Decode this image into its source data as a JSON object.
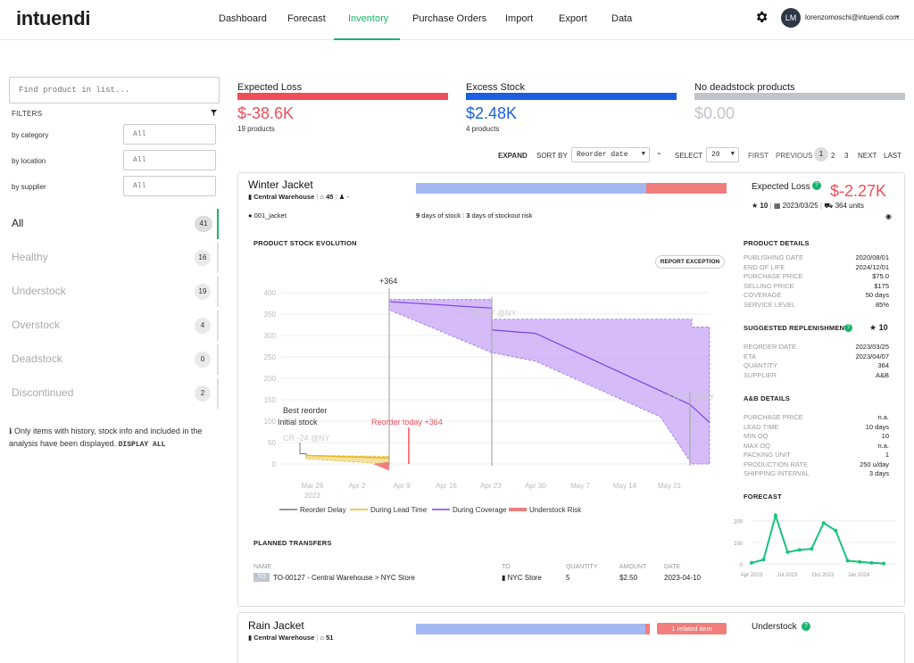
{
  "app": {
    "logo": "intuendi"
  },
  "nav": {
    "items": [
      "Dashboard",
      "Forecast",
      "Inventory",
      "Purchase Orders",
      "Import",
      "Export",
      "Data"
    ],
    "active": "Inventory",
    "gear_icon": "gear-icon",
    "user": {
      "initials": "LM",
      "email": "lorenzomoschi@intuendi.com",
      "caret": "▾"
    }
  },
  "sidebar": {
    "search_placeholder": "Find product in list...",
    "filters_title": "FILTERS",
    "filters": [
      {
        "label": "by category",
        "value": "All"
      },
      {
        "label": "by location",
        "value": "All"
      },
      {
        "label": "by supplier",
        "value": "All"
      }
    ],
    "categories": [
      {
        "label": "All",
        "count": "41",
        "active": true
      },
      {
        "label": "Healthy",
        "count": "16"
      },
      {
        "label": "Understock",
        "count": "19"
      },
      {
        "label": "Overstock",
        "count": "4"
      },
      {
        "label": "Deadstock",
        "count": "0"
      },
      {
        "label": "Discontinued",
        "count": "2"
      }
    ],
    "note": "Only items with history, stock info and included in the analysis have been displayed.",
    "note_link": "DISPLAY ALL"
  },
  "kpis": [
    {
      "title": "Expected Loss",
      "value": "$-38.6K",
      "sub": "19 products",
      "color": "#ee4d5a"
    },
    {
      "title": "Excess Stock",
      "value": "$2.48K",
      "sub": "4 products",
      "color": "#1a5fe0"
    },
    {
      "title": "No deadstock products",
      "value": "$0.00",
      "sub": "",
      "color": "#c1c4c9"
    }
  ],
  "toolbar": {
    "expand": "EXPAND",
    "sort_by": "SORT BY",
    "sort_value": "Reorder date",
    "select": "SELECT",
    "select_value": "20",
    "first": "FIRST",
    "previous": "PREVIOUS",
    "pages": [
      "1",
      "2",
      "3"
    ],
    "next": "NEXT",
    "last": "LAST"
  },
  "product1": {
    "name": "Winter Jacket",
    "warehouse": "Central Warehouse",
    "count": "45",
    "dash": "-",
    "sku": "001_jacket",
    "days_stock": "9",
    "days_stock_label": "days of stock",
    "days_risk": "3",
    "days_risk_label": "days of stockout risk",
    "expected_loss_label": "Expected Loss",
    "expected_loss": "$-2.27K",
    "star_count": "10",
    "date": "2023/03/25",
    "units": "364 units",
    "stock_fraction_good": 0.74,
    "chart_title": "PRODUCT STOCK EVOLUTION",
    "report_button": "REPORT EXCEPTION",
    "details_title": "PRODUCT DETAILS",
    "details": [
      [
        "PUBLISHING DATE",
        "2020/08/01"
      ],
      [
        "END OF LIFE",
        "2024/12/01"
      ],
      [
        "PURCHASE PRICE",
        "$75.0"
      ],
      [
        "SELLING PRICE",
        "$175"
      ],
      [
        "COVERAGE",
        "50 days"
      ],
      [
        "SERVICE LEVEL",
        "85%"
      ]
    ],
    "replenishment_title": "SUGGESTED REPLENISHMENT",
    "replenishment_star": "10",
    "replenishment": [
      [
        "REORDER DATE",
        "2023/03/25"
      ],
      [
        "ETA",
        "2023/04/07"
      ],
      [
        "QUANTITY",
        "364"
      ],
      [
        "SUPPLIER",
        "A&B"
      ]
    ],
    "ab_title": "A&B DETAILS",
    "ab": [
      [
        "PURCHASE PRICE",
        "n.a."
      ],
      [
        "LEAD TIME",
        "10 days"
      ],
      [
        "MIN OQ",
        "10"
      ],
      [
        "MAX OQ",
        "n.a."
      ],
      [
        "PACKING UNIT",
        "1"
      ],
      [
        "PRODUCTION RATE",
        "250 u/day"
      ],
      [
        "SHIPPING INTERVAL",
        "3 days"
      ]
    ],
    "forecast_title": "FORECAST",
    "transfers_title": "PLANNED TRANSFERS",
    "transfers_headers": [
      "NAME",
      "TO",
      "QUANTITY",
      "AMOUNT",
      "DATE"
    ],
    "transfer": {
      "tag": "TO",
      "name": "TO-00127 - Central Warehouse > NYC Store",
      "to": "NYC Store",
      "qty": "5",
      "amount": "$2.50",
      "date": "2023-04-10"
    }
  },
  "product2": {
    "name": "Rain Jacket",
    "warehouse": "Central Warehouse",
    "count": "51",
    "related": "1 related item",
    "status": "Understock",
    "stock_fraction_good": 0.98
  },
  "chart_data": [
    {
      "type": "line",
      "title": "PRODUCT STOCK EVOLUTION",
      "y_ticks": [
        0,
        50,
        100,
        150,
        200,
        250,
        300,
        350,
        400
      ],
      "x_ticks": [
        "Mar 26\n2023",
        "Apr 2",
        "Apr 9",
        "Apr 16",
        "Apr 23",
        "Apr 30",
        "May 7",
        "May 14",
        "May 21"
      ],
      "ylim": [
        0,
        400
      ],
      "legend": [
        "Reorder Delay",
        "During Lead Time",
        "During Coverage",
        "Understock Risk"
      ],
      "annotations": [
        "+364",
        "Best reorder",
        "Initial stock",
        "Reorder today +364",
        "CR -24 @NY",
        "CR -47 @NY",
        "CR -17 @NY"
      ],
      "series": [
        {
          "name": "During Lead Time",
          "x": [
            "2023-03-25",
            "2023-04-07"
          ],
          "y": [
            20,
            15
          ]
        },
        {
          "name": "During Coverage",
          "x": [
            "2023-04-07",
            "2023-04-22",
            "2023-04-23",
            "2023-04-30",
            "2023-05-21",
            "2023-05-26"
          ],
          "y": [
            379,
            364,
            313,
            305,
            139,
            97
          ]
        }
      ]
    },
    {
      "type": "line",
      "title": "FORECAST",
      "x_ticks": [
        "Apr 2023",
        "Jul 2023",
        "Oct 2023",
        "Jan 2024"
      ],
      "y_ticks": [
        0,
        100,
        200
      ],
      "ylim": [
        0,
        240
      ],
      "series": [
        {
          "name": "Forecast",
          "y": [
            5,
            20,
            225,
            55,
            65,
            70,
            190,
            155,
            15,
            10,
            5,
            2
          ]
        }
      ]
    }
  ]
}
